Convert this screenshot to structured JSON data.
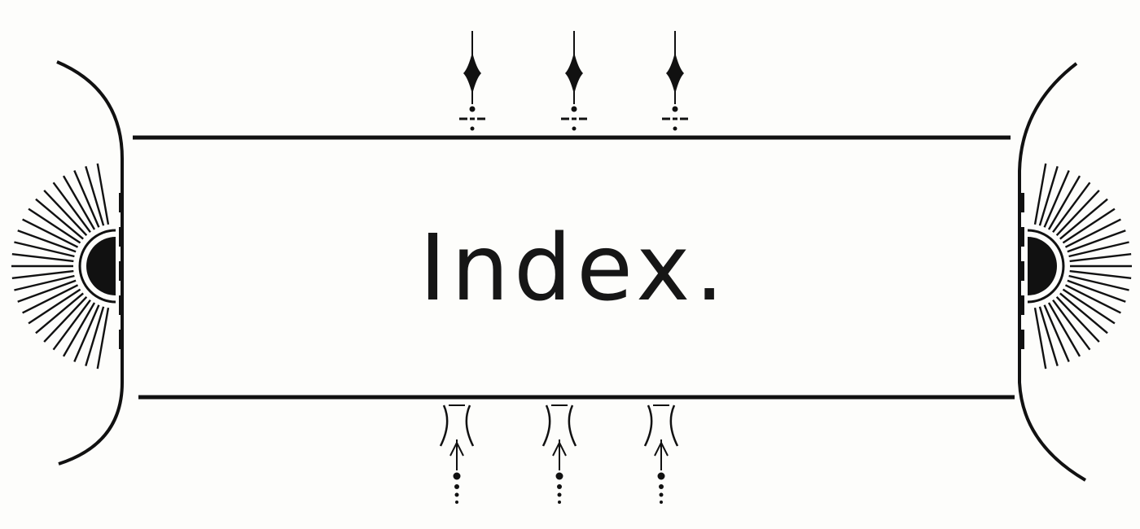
{
  "title": "Index.",
  "colors": {
    "ink": "#111111",
    "paper": "#fdfdfb"
  }
}
